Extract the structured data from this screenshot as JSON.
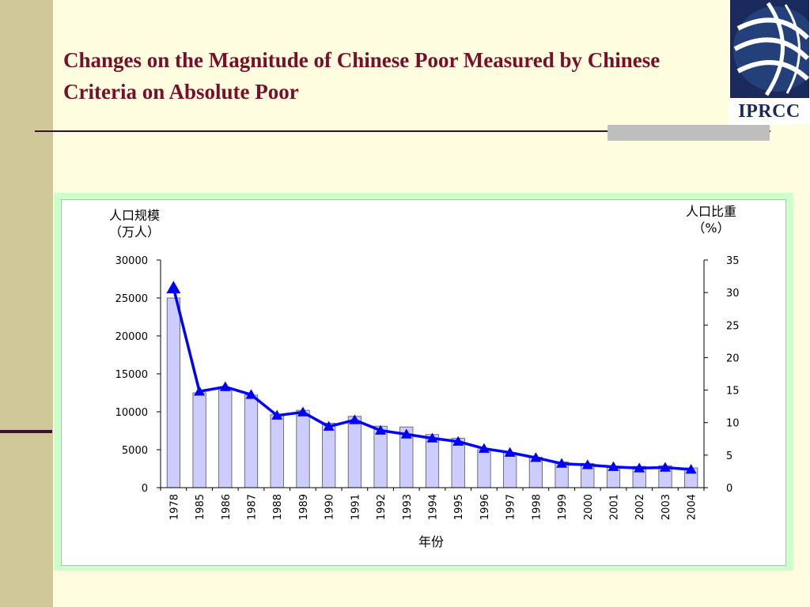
{
  "slide": {
    "title": "Changes on the Magnitude of Chinese Poor Measured by Chinese Criteria on Absolute Poor",
    "logo_text": "IPRCC"
  },
  "colors": {
    "background": "#FFFDE0",
    "title": "#7A0E28",
    "band": "#CFC99A",
    "bar_fill": "#CCCCFF",
    "line": "#0000FF",
    "chart_frame": "#CCFFCC"
  },
  "icons": {
    "logo": "globe-icon"
  },
  "chart_data": {
    "type": "bar",
    "categories": [
      "1978",
      "1985",
      "1986",
      "1987",
      "1988",
      "1989",
      "1990",
      "1991",
      "1992",
      "1993",
      "1994",
      "1995",
      "1996",
      "1997",
      "1998",
      "1999",
      "2000",
      "2001",
      "2002",
      "2003",
      "2004"
    ],
    "series": [
      {
        "type": "bar",
        "axis": "left",
        "values": [
          25000,
          12500,
          13100,
          12200,
          9600,
          10200,
          8500,
          9400,
          8100,
          8000,
          7000,
          6500,
          5000,
          4600,
          4000,
          3400,
          3200,
          2800,
          2800,
          2900,
          2600
        ]
      },
      {
        "type": "line",
        "axis": "right",
        "values": [
          30.7,
          14.8,
          15.5,
          14.3,
          11.1,
          11.6,
          9.4,
          10.4,
          8.8,
          8.2,
          7.6,
          7.1,
          6.0,
          5.4,
          4.6,
          3.7,
          3.5,
          3.2,
          3.0,
          3.1,
          2.8
        ]
      }
    ],
    "y_left": {
      "label_line1": "人口规模",
      "label_line2": "（万人）",
      "ylim": [
        0,
        30000
      ],
      "ticks": [
        0,
        5000,
        10000,
        15000,
        20000,
        25000,
        30000
      ]
    },
    "y_right": {
      "label_line1": "人口比重",
      "label_line2": "（%）",
      "ylim": [
        0,
        35
      ],
      "ticks": [
        0,
        5,
        10,
        15,
        20,
        25,
        30,
        35
      ]
    },
    "xlabel": "年份",
    "grid": false,
    "legend": "none"
  }
}
